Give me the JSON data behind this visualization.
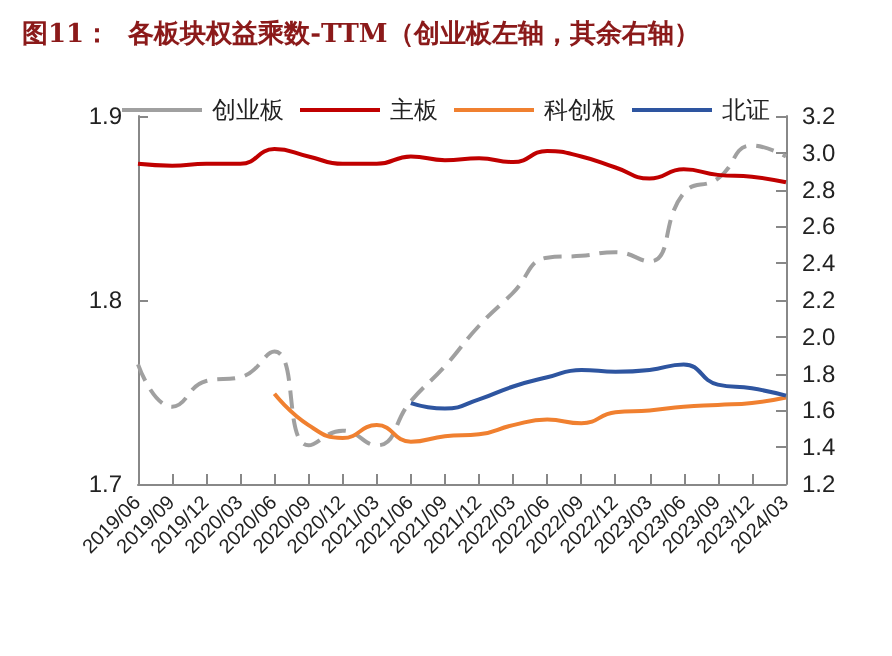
{
  "chart_data": {
    "type": "line",
    "title": "图11：  各板块权益乘数-TTM（创业板左轴，其余右轴）",
    "categories": [
      "2019/06",
      "2019/09",
      "2019/12",
      "2020/03",
      "2020/06",
      "2020/09",
      "2020/12",
      "2021/03",
      "2021/06",
      "2021/09",
      "2021/12",
      "2022/03",
      "2022/06",
      "2022/09",
      "2022/12",
      "2023/03",
      "2023/06",
      "2023/09",
      "2023/12",
      "2024/03"
    ],
    "series": [
      {
        "name": "创业板",
        "color": "#a0a0a0",
        "line_style": "dashed",
        "values": [
          1.765,
          1.742,
          1.756,
          1.758,
          1.772,
          1.721,
          1.729,
          1.721,
          1.745,
          1.764,
          1.786,
          1.804,
          1.823,
          1.824,
          1.826,
          1.821,
          1.858,
          1.866,
          1.884,
          1.878
        ]
      },
      {
        "name": "主板",
        "color": "#c00000",
        "axis": "y2",
        "values": [
          2.94,
          2.93,
          2.94,
          2.94,
          3.02,
          2.98,
          2.94,
          2.94,
          2.98,
          2.96,
          2.97,
          2.95,
          3.01,
          2.98,
          2.92,
          2.86,
          2.91,
          2.88,
          2.87,
          2.84
        ]
      },
      {
        "name": "科创板",
        "color": "#f08030",
        "axis": "y2",
        "values": [
          null,
          null,
          null,
          null,
          1.69,
          1.52,
          1.45,
          1.52,
          1.43,
          1.46,
          1.47,
          1.52,
          1.55,
          1.53,
          1.59,
          1.6,
          1.62,
          1.63,
          1.64,
          1.67
        ]
      },
      {
        "name": "北证",
        "color": "#2e55a0",
        "axis": "y2",
        "values": [
          null,
          null,
          null,
          null,
          null,
          null,
          null,
          null,
          1.64,
          1.61,
          1.66,
          1.73,
          1.78,
          1.82,
          1.81,
          1.82,
          1.85,
          1.74,
          1.72,
          1.68
        ]
      }
    ],
    "ylim": [
      1.7,
      1.9
    ],
    "yticks": [
      1.7,
      1.8,
      1.9
    ],
    "y2lim": [
      1.2,
      3.2
    ],
    "y2ticks": [
      1.2,
      1.4,
      1.6,
      1.8,
      {
        "value": 2,
        "label": "2.0"
      },
      2.2,
      2.4,
      2.6,
      2.8,
      {
        "value": 3,
        "label": "3.0"
      },
      3.2
    ],
    "legend": "top",
    "grid": false,
    "marker": "none"
  }
}
